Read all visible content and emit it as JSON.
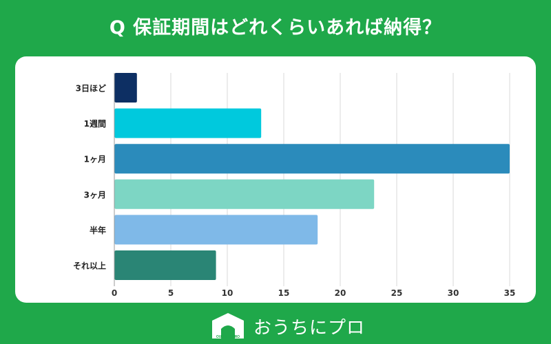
{
  "title": "Q 保証期間はどれくらいあれば納得？",
  "brand": {
    "text": "おうちにプロ",
    "logo_text": "OUCHI ni PRO"
  },
  "chart_data": {
    "type": "bar",
    "orientation": "horizontal",
    "categories": [
      "3日ほど",
      "1週間",
      "1ヶ月",
      "3ヶ月",
      "半年",
      "それ以上"
    ],
    "values": [
      2,
      13,
      35,
      23,
      18,
      9
    ],
    "colors": [
      "#0d2f63",
      "#00c9dd",
      "#2b8bbb",
      "#7dd6c4",
      "#7fb9e8",
      "#2a8575"
    ],
    "xlim": [
      0,
      37
    ],
    "xticks": [
      0,
      5,
      10,
      15,
      20,
      25,
      30,
      35
    ],
    "grid": true,
    "title": "",
    "xlabel": "",
    "ylabel": ""
  }
}
